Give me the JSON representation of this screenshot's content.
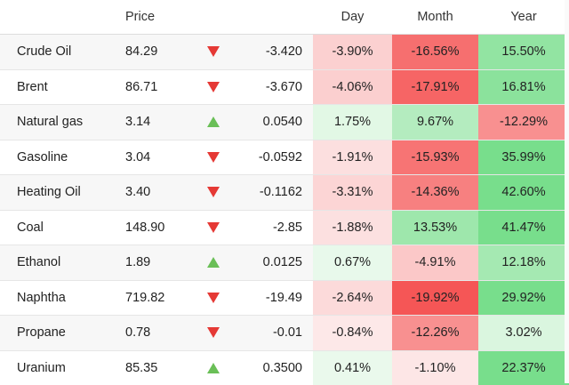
{
  "header": {
    "name": "",
    "price": "Price",
    "day": "Day",
    "month": "Month",
    "year": "Year"
  },
  "rows": [
    {
      "name": "Crude Oil",
      "price": "84.29",
      "dir": "down",
      "change": "-3.420",
      "day": "-3.90%",
      "month": "-16.56%",
      "year": "15.50%"
    },
    {
      "name": "Brent",
      "price": "86.71",
      "dir": "down",
      "change": "-3.670",
      "day": "-4.06%",
      "month": "-17.91%",
      "year": "16.81%"
    },
    {
      "name": "Natural gas",
      "price": "3.14",
      "dir": "up",
      "change": "0.0540",
      "day": "1.75%",
      "month": "9.67%",
      "year": "-12.29%"
    },
    {
      "name": "Gasoline",
      "price": "3.04",
      "dir": "down",
      "change": "-0.0592",
      "day": "-1.91%",
      "month": "-15.93%",
      "year": "35.99%"
    },
    {
      "name": "Heating Oil",
      "price": "3.40",
      "dir": "down",
      "change": "-0.1162",
      "day": "-3.31%",
      "month": "-14.36%",
      "year": "42.60%"
    },
    {
      "name": "Coal",
      "price": "148.90",
      "dir": "down",
      "change": "-2.85",
      "day": "-1.88%",
      "month": "13.53%",
      "year": "41.47%"
    },
    {
      "name": "Ethanol",
      "price": "1.89",
      "dir": "up",
      "change": "0.0125",
      "day": "0.67%",
      "month": "-4.91%",
      "year": "12.18%"
    },
    {
      "name": "Naphtha",
      "price": "719.82",
      "dir": "down",
      "change": "-19.49",
      "day": "-2.64%",
      "month": "-19.92%",
      "year": "29.92%"
    },
    {
      "name": "Propane",
      "price": "0.78",
      "dir": "down",
      "change": "-0.01",
      "day": "-0.84%",
      "month": "-12.26%",
      "year": "3.02%"
    },
    {
      "name": "Uranium",
      "price": "85.35",
      "dir": "up",
      "change": "0.3500",
      "day": "0.41%",
      "month": "-1.10%",
      "year": "22.37%"
    }
  ],
  "colors": {
    "up_arrow": "#6abf57",
    "down_arrow": "#e53935",
    "negative_strong": "#f55b5b",
    "positive_strong": "#7fe08f"
  }
}
